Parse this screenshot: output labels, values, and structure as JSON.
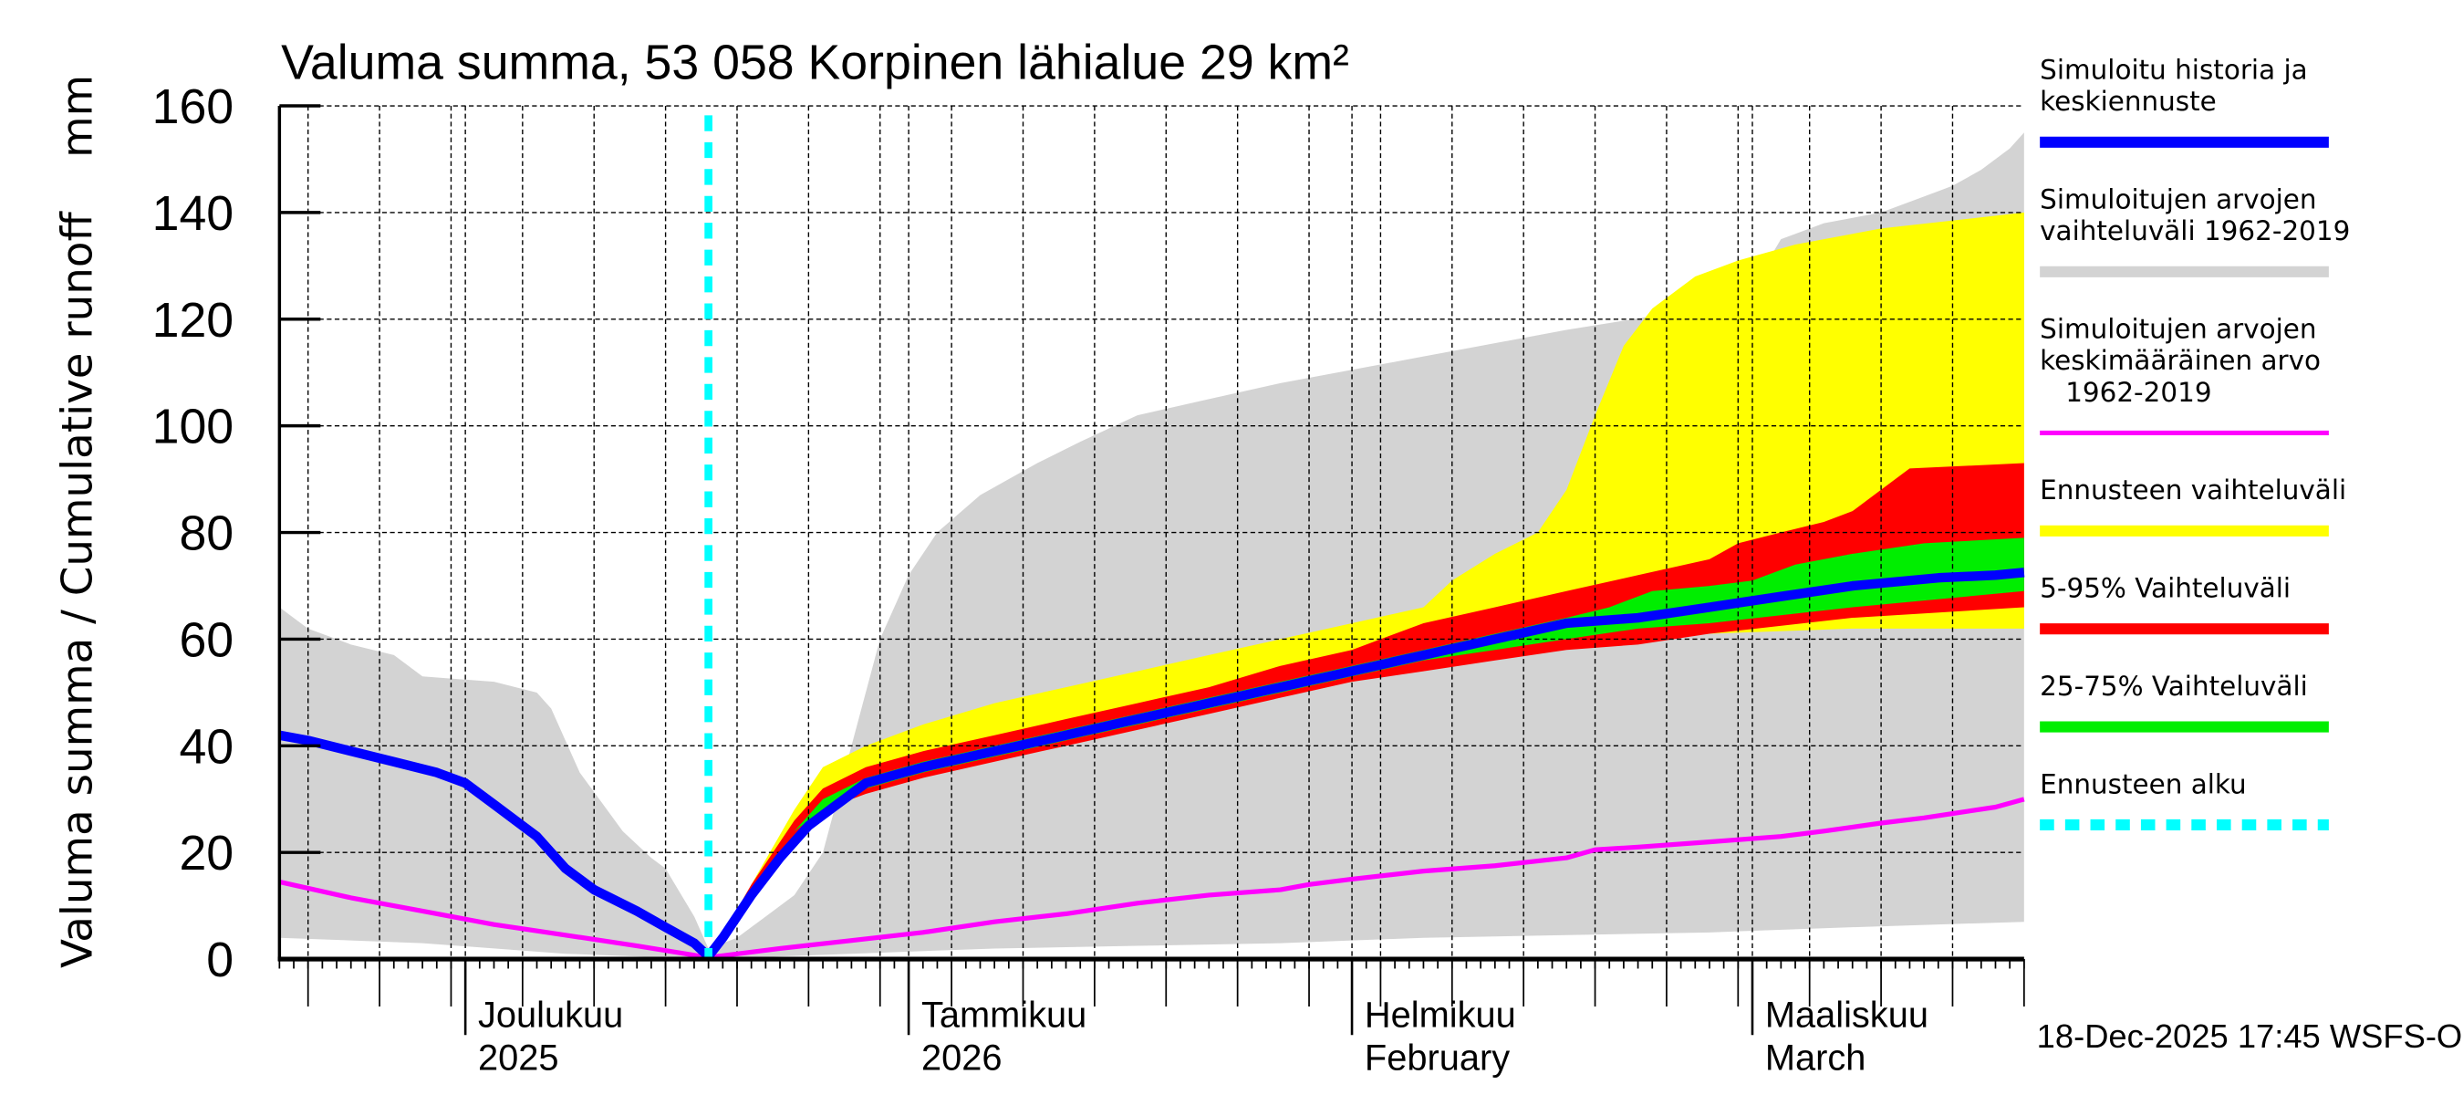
{
  "chart_data": {
    "type": "area",
    "title": "Valuma summa, 53 058 Korpinen lähialue 29 km²",
    "ylabel": "Valuma summa / Cumulative runoff    mm",
    "xlabel": "",
    "x_unit": "days since 18-Nov-2025",
    "xlim": [
      0,
      120
    ],
    "ylim": [
      0,
      160
    ],
    "yticks": [
      0,
      20,
      40,
      60,
      80,
      100,
      120,
      140,
      160
    ],
    "ytick_labels": [
      "0",
      "20",
      "40",
      "60",
      "80",
      "100",
      "120",
      "140",
      "160"
    ],
    "grid": true,
    "legend_position": "right",
    "month_labels": [
      {
        "day": 13,
        "line1": "Joulukuu",
        "line2": "2025"
      },
      {
        "day": 44,
        "line1": "Tammikuu",
        "line2": "2026"
      },
      {
        "day": 75,
        "line1": "Helmikuu",
        "line2": "February"
      },
      {
        "day": 103,
        "line1": "Maaliskuu",
        "line2": "March"
      }
    ],
    "forecast_start_day": 30,
    "series": [
      {
        "name": "Simuloitujen arvojen vaihteluväli 1962-2019",
        "kind": "band",
        "color": "#d3d3d3",
        "upper": [
          [
            0,
            66
          ],
          [
            2,
            62
          ],
          [
            5,
            59
          ],
          [
            8,
            57
          ],
          [
            10,
            53
          ],
          [
            15,
            52
          ],
          [
            18,
            50
          ],
          [
            19,
            47
          ],
          [
            21,
            35
          ],
          [
            24,
            24
          ],
          [
            26,
            19
          ],
          [
            27,
            17
          ],
          [
            29,
            8
          ],
          [
            30,
            2
          ],
          [
            32,
            4
          ],
          [
            34,
            8
          ],
          [
            36,
            12
          ],
          [
            38,
            20
          ],
          [
            40,
            40
          ],
          [
            42,
            60
          ],
          [
            44,
            72
          ],
          [
            46,
            80
          ],
          [
            49,
            87
          ],
          [
            53,
            93
          ],
          [
            56,
            97
          ],
          [
            60,
            102
          ],
          [
            65,
            105
          ],
          [
            70,
            108
          ],
          [
            80,
            113
          ],
          [
            90,
            118
          ],
          [
            97,
            121
          ],
          [
            102,
            124
          ],
          [
            103,
            126
          ],
          [
            105,
            135
          ],
          [
            108,
            138
          ],
          [
            112,
            140
          ],
          [
            115,
            143
          ],
          [
            117,
            145
          ],
          [
            119,
            148
          ],
          [
            121,
            152
          ],
          [
            122,
            155
          ]
        ],
        "lower": [
          [
            0,
            4
          ],
          [
            10,
            3
          ],
          [
            20,
            1
          ],
          [
            30,
            0
          ],
          [
            40,
            1
          ],
          [
            50,
            2
          ],
          [
            60,
            2.5
          ],
          [
            70,
            3
          ],
          [
            80,
            4
          ],
          [
            90,
            4.5
          ],
          [
            100,
            5
          ],
          [
            110,
            6
          ],
          [
            122,
            7
          ]
        ]
      },
      {
        "name": "Ennusteen vaihteluväli",
        "kind": "band",
        "color": "#ffff00",
        "upper": [
          [
            30,
            0
          ],
          [
            33,
            14
          ],
          [
            36,
            28
          ],
          [
            38,
            36
          ],
          [
            41,
            40
          ],
          [
            45,
            44
          ],
          [
            50,
            48
          ],
          [
            55,
            51
          ],
          [
            60,
            54
          ],
          [
            65,
            57
          ],
          [
            70,
            60
          ],
          [
            75,
            63
          ],
          [
            80,
            66
          ],
          [
            82,
            71
          ],
          [
            85,
            76
          ],
          [
            88,
            80
          ],
          [
            90,
            88
          ],
          [
            92,
            102
          ],
          [
            94,
            115
          ],
          [
            96,
            122
          ],
          [
            99,
            128
          ],
          [
            102,
            131
          ],
          [
            106,
            134
          ],
          [
            112,
            137
          ],
          [
            122,
            140
          ]
        ],
        "lower": [
          [
            30,
            0
          ],
          [
            33,
            12
          ],
          [
            36,
            21
          ],
          [
            38,
            28
          ],
          [
            41,
            32
          ],
          [
            45,
            35
          ],
          [
            50,
            38
          ],
          [
            55,
            41
          ],
          [
            60,
            44
          ],
          [
            65,
            47
          ],
          [
            70,
            50
          ],
          [
            75,
            52
          ],
          [
            80,
            55
          ],
          [
            85,
            57
          ],
          [
            90,
            59
          ],
          [
            95,
            60
          ],
          [
            100,
            61
          ],
          [
            110,
            62
          ],
          [
            122,
            62
          ]
        ]
      },
      {
        "name": "5-95% Vaihteluväli",
        "kind": "band",
        "color": "#ff0000",
        "upper": [
          [
            30,
            0
          ],
          [
            33,
            14
          ],
          [
            36,
            26
          ],
          [
            38,
            32
          ],
          [
            41,
            36
          ],
          [
            45,
            39
          ],
          [
            50,
            42
          ],
          [
            55,
            45
          ],
          [
            60,
            48
          ],
          [
            65,
            51
          ],
          [
            70,
            55
          ],
          [
            75,
            58
          ],
          [
            80,
            63
          ],
          [
            85,
            66
          ],
          [
            90,
            69
          ],
          [
            95,
            72
          ],
          [
            100,
            75
          ],
          [
            102,
            78
          ],
          [
            105,
            80
          ],
          [
            108,
            82
          ],
          [
            110,
            84
          ],
          [
            112,
            88
          ],
          [
            114,
            92
          ],
          [
            122,
            93
          ]
        ],
        "lower": [
          [
            30,
            0
          ],
          [
            33,
            12
          ],
          [
            36,
            22
          ],
          [
            38,
            28
          ],
          [
            41,
            31
          ],
          [
            45,
            34
          ],
          [
            50,
            37
          ],
          [
            55,
            40
          ],
          [
            60,
            43
          ],
          [
            65,
            46
          ],
          [
            70,
            49
          ],
          [
            75,
            52
          ],
          [
            80,
            54
          ],
          [
            85,
            56
          ],
          [
            90,
            58
          ],
          [
            95,
            59
          ],
          [
            100,
            61
          ],
          [
            110,
            64
          ],
          [
            122,
            66
          ]
        ]
      },
      {
        "name": "25-75% Vaihteluväli",
        "kind": "band",
        "color": "#00ee00",
        "upper": [
          [
            30,
            0
          ],
          [
            33,
            13
          ],
          [
            36,
            24
          ],
          [
            38,
            30
          ],
          [
            41,
            34
          ],
          [
            45,
            37
          ],
          [
            50,
            40
          ],
          [
            55,
            43
          ],
          [
            60,
            46
          ],
          [
            65,
            49
          ],
          [
            70,
            52
          ],
          [
            75,
            55
          ],
          [
            80,
            58
          ],
          [
            85,
            61
          ],
          [
            90,
            64
          ],
          [
            93,
            66
          ],
          [
            96,
            69
          ],
          [
            100,
            70
          ],
          [
            103,
            71
          ],
          [
            106,
            74
          ],
          [
            110,
            76
          ],
          [
            115,
            78
          ],
          [
            122,
            79
          ]
        ],
        "lower": [
          [
            30,
            0
          ],
          [
            33,
            13
          ],
          [
            36,
            24
          ],
          [
            38,
            28
          ],
          [
            41,
            32
          ],
          [
            45,
            35
          ],
          [
            50,
            38
          ],
          [
            55,
            41
          ],
          [
            60,
            44
          ],
          [
            65,
            47
          ],
          [
            70,
            50
          ],
          [
            75,
            53
          ],
          [
            80,
            56
          ],
          [
            85,
            58
          ],
          [
            90,
            60
          ],
          [
            95,
            62
          ],
          [
            100,
            63
          ],
          [
            110,
            66
          ],
          [
            122,
            69
          ]
        ]
      },
      {
        "name": "Simuloitu historia ja keskiennuste",
        "kind": "line",
        "color": "#0000ff",
        "points": [
          [
            0,
            42
          ],
          [
            2,
            41
          ],
          [
            5,
            39
          ],
          [
            8,
            37
          ],
          [
            11,
            35
          ],
          [
            13,
            33
          ],
          [
            15,
            29
          ],
          [
            18,
            23
          ],
          [
            20,
            17
          ],
          [
            22,
            13
          ],
          [
            25,
            9
          ],
          [
            27,
            6
          ],
          [
            29,
            3
          ],
          [
            30,
            0.5
          ],
          [
            31,
            4
          ],
          [
            33,
            12
          ],
          [
            35,
            19
          ],
          [
            37,
            25
          ],
          [
            39,
            29
          ],
          [
            41,
            33
          ],
          [
            45,
            36
          ],
          [
            50,
            39
          ],
          [
            55,
            42
          ],
          [
            60,
            45
          ],
          [
            65,
            48
          ],
          [
            70,
            51
          ],
          [
            75,
            54
          ],
          [
            80,
            57
          ],
          [
            85,
            60
          ],
          [
            90,
            63
          ],
          [
            95,
            64
          ],
          [
            100,
            66
          ],
          [
            105,
            68
          ],
          [
            110,
            70
          ],
          [
            116,
            71.5
          ],
          [
            120,
            72
          ],
          [
            122,
            72.5
          ]
        ]
      },
      {
        "name": "Simuloitujen arvojen keskimääräinen arvo 1962-2019",
        "kind": "line",
        "color": "#ff00ff",
        "points": [
          [
            0,
            14.5
          ],
          [
            5,
            11.5
          ],
          [
            10,
            9
          ],
          [
            15,
            6.5
          ],
          [
            20,
            4.5
          ],
          [
            25,
            2.5
          ],
          [
            30,
            0.3
          ],
          [
            35,
            2
          ],
          [
            40,
            3.5
          ],
          [
            45,
            5
          ],
          [
            50,
            7
          ],
          [
            55,
            8.5
          ],
          [
            60,
            10.5
          ],
          [
            65,
            12
          ],
          [
            70,
            13
          ],
          [
            72,
            14
          ],
          [
            75,
            15
          ],
          [
            80,
            16.5
          ],
          [
            85,
            17.5
          ],
          [
            90,
            19
          ],
          [
            92,
            20.5
          ],
          [
            95,
            21
          ],
          [
            100,
            22
          ],
          [
            105,
            23
          ],
          [
            108,
            24
          ],
          [
            112,
            25.5
          ],
          [
            115,
            26.5
          ],
          [
            120,
            28.5
          ],
          [
            122,
            30
          ]
        ]
      }
    ]
  },
  "legend": {
    "items": [
      {
        "label_lines": [
          "Simuloitu historia ja",
          "keskiennuste"
        ],
        "color": "#0000ff",
        "style": "solid"
      },
      {
        "label_lines": [
          "Simuloitujen arvojen",
          "vaihteluväli 1962-2019"
        ],
        "color": "#d3d3d3",
        "style": "solid"
      },
      {
        "label_lines": [
          "Simuloitujen arvojen",
          "keskimääräinen arvo",
          "   1962-2019"
        ],
        "color": "#ff00ff",
        "style": "thin"
      },
      {
        "label_lines": [
          "Ennusteen vaihteluväli"
        ],
        "color": "#ffff00",
        "style": "solid"
      },
      {
        "label_lines": [
          "5-95% Vaihteluväli"
        ],
        "color": "#ff0000",
        "style": "solid"
      },
      {
        "label_lines": [
          "25-75% Vaihteluväli"
        ],
        "color": "#00ee00",
        "style": "solid"
      },
      {
        "label_lines": [
          "Ennusteen alku"
        ],
        "color": "#00ffff",
        "style": "dashed"
      }
    ]
  },
  "footer": {
    "timestamp": "18-Dec-2025 17:45 WSFS-O"
  }
}
